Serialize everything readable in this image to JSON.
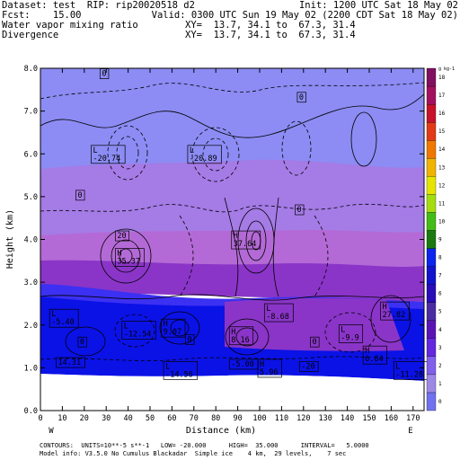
{
  "header": {
    "line1_left": "Dataset: test  RIP: rip20020518 d2",
    "line1_right": "Init: 1200 UTC Sat 18 May 02",
    "line2_left": "Fcst:    15.00",
    "line2_right": "Valid: 0300 UTC Sun 19 May 02 (2200 CDT Sat 18 May 02)",
    "line3_left": "Water vapor mixing ratio",
    "line3_right": "XY=  13.7, 34.1 to  67.3, 31.4",
    "line4_left": "Divergence",
    "line4_right": "XY=  13.7, 34.1 to  67.3, 31.4"
  },
  "footer": {
    "line1": "CONTOURS:  UNITS=10**-5 s**-1   LOW= -20.000      HIGH=  35.000      INTERVAL=   5.0000",
    "line2": "Model info: V3.5.0 No Cumulus Blackadar  Simple ice    4 km,  29 levels,    7 sec"
  },
  "colors": {
    "band_dark_blue": "#0b12e6",
    "band_mid_blue": "#3c30f2",
    "band_purple": "#8a35c8",
    "band_violet": "#b46ad6",
    "band_light_violet": "#a57be6",
    "band_periwinkle": "#8c8cf4",
    "contour_color": "#000000"
  },
  "chart_data": {
    "type": "contour",
    "xlabel": "Distance (km)",
    "ylabel": "Height (km)",
    "xlim": [
      0,
      175
    ],
    "ylim": [
      0,
      8
    ],
    "x_ticks": [
      "0",
      "10",
      "20",
      "30",
      "40",
      "50",
      "60",
      "70",
      "80",
      "90",
      "100",
      "110",
      "120",
      "130",
      "140",
      "150",
      "160",
      "170"
    ],
    "y_ticks": [
      "0.0",
      "1.0",
      "2.0",
      "3.0",
      "4.0",
      "5.0",
      "6.0",
      "7.0",
      "8.0"
    ],
    "x_end_labels": {
      "left": "W",
      "right": "E"
    },
    "colorbar": {
      "unit_label": "g kg-1",
      "levels": [
        "0",
        "1",
        "2",
        "3",
        "4",
        "5",
        "6",
        "7",
        "8",
        "9",
        "10",
        "11",
        "12",
        "13",
        "14",
        "15",
        "16",
        "17",
        "18"
      ],
      "colors": [
        "#7070f0",
        "#9e88e6",
        "#8060ec",
        "#6428e0",
        "#5a14b6",
        "#4c2ca2",
        "#2a0cb8",
        "#1214cc",
        "#0c24ec",
        "#1a7a10",
        "#42bc16",
        "#a4dc10",
        "#e6e400",
        "#f0b400",
        "#f07800",
        "#e23a16",
        "#c8122a",
        "#a41060",
        "#821060"
      ]
    },
    "labels": [
      {
        "x": 28,
        "y": 7.82,
        "text": "0"
      },
      {
        "x": 118,
        "y": 7.27,
        "text": "0"
      },
      {
        "x": 24,
        "y": 6.03,
        "text": "L",
        "value": "-20.74"
      },
      {
        "x": 68,
        "y": 6.03,
        "text": "L",
        "value": "-20.89"
      },
      {
        "x": 17,
        "y": 4.98,
        "text": "0"
      },
      {
        "x": 117,
        "y": 4.64,
        "text": "0"
      },
      {
        "x": 35,
        "y": 4.03,
        "text": "20"
      },
      {
        "x": 88,
        "y": 4.03,
        "text": "H",
        "value": "37.64"
      },
      {
        "x": 35,
        "y": 3.62,
        "text": "H",
        "value": "35.37"
      },
      {
        "x": 5,
        "y": 2.2,
        "text": "L",
        "value": "-5.40"
      },
      {
        "x": 103,
        "y": 2.33,
        "text": "L",
        "value": "-8.68"
      },
      {
        "x": 156,
        "y": 2.37,
        "text": "H",
        "value": "27.82"
      },
      {
        "x": 38,
        "y": 1.92,
        "text": "L",
        "value": "-12.54"
      },
      {
        "x": 56,
        "y": 1.97,
        "text": "H",
        "value": "9.07"
      },
      {
        "x": 87,
        "y": 1.79,
        "text": "H",
        "value": "8.16"
      },
      {
        "x": 137,
        "y": 1.84,
        "text": "L",
        "value": "-9.9"
      },
      {
        "x": 148,
        "y": 1.34,
        "text": "H",
        "value": "6.84"
      },
      {
        "x": 18,
        "y": 1.55,
        "text": "0"
      },
      {
        "x": 67,
        "y": 1.61,
        "text": "0"
      },
      {
        "x": 124,
        "y": 1.55,
        "text": "0"
      },
      {
        "x": 8,
        "y": 1.07,
        "text": "14.31"
      },
      {
        "x": 57,
        "y": 0.98,
        "text": "L",
        "value": "-14.56"
      },
      {
        "x": 87,
        "y": 1.03,
        "text": "-5.00"
      },
      {
        "x": 100,
        "y": 1.03,
        "text": "H",
        "value": "5.96"
      },
      {
        "x": 119,
        "y": 0.98,
        "text": "-20"
      },
      {
        "x": 162,
        "y": 0.98,
        "text": "L",
        "value": "-11.28"
      }
    ]
  }
}
